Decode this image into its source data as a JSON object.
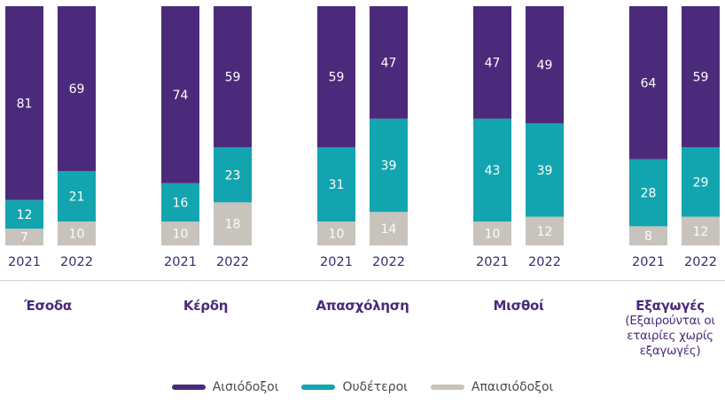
{
  "chart_data": {
    "type": "bar",
    "stacked": true,
    "percent": true,
    "title": "",
    "xlabel": "",
    "ylabel": "",
    "ylim": [
      0,
      100
    ],
    "grid": false,
    "legend_position": "bottom-center",
    "groups": [
      {
        "category": "Έσοδα",
        "note": "",
        "years": [
          "2021",
          "2022"
        ]
      },
      {
        "category": "Κέρδη",
        "note": "",
        "years": [
          "2021",
          "2022"
        ]
      },
      {
        "category": "Απασχόληση",
        "note": "",
        "years": [
          "2021",
          "2022"
        ]
      },
      {
        "category": "Μισθοί",
        "note": "",
        "years": [
          "2021",
          "2022"
        ]
      },
      {
        "category": "Εξαγωγές",
        "note": "(Εξαιρούνται οι εταιρίες χωρίς εξαγωγές)",
        "years": [
          "2021",
          "2022"
        ]
      }
    ],
    "series": [
      {
        "name": "Αισιόδοξοι",
        "color": "#4b2a7b",
        "values": [
          [
            81,
            69
          ],
          [
            74,
            59
          ],
          [
            59,
            47
          ],
          [
            47,
            49
          ],
          [
            64,
            59
          ]
        ]
      },
      {
        "name": "Ουδέτεροι",
        "color": "#12a5b0",
        "values": [
          [
            12,
            21
          ],
          [
            16,
            23
          ],
          [
            31,
            39
          ],
          [
            43,
            39
          ],
          [
            28,
            29
          ]
        ]
      },
      {
        "name": "Απαισιόδοξοι",
        "color": "#c8c3bd",
        "values": [
          [
            7,
            10
          ],
          [
            10,
            18
          ],
          [
            10,
            14
          ],
          [
            10,
            12
          ],
          [
            8,
            12
          ]
        ]
      }
    ]
  },
  "categories": {
    "c0": "Έσοδα",
    "c1": "Κέρδη",
    "c2": "Απασχόληση",
    "c3": "Μισθοί",
    "c4": "Εξαγωγές",
    "c4_note": "(Εξαιρούνται οι εταιρίες χωρίς εξαγωγές)"
  },
  "legend": {
    "optimistic": "Αισιόδοξοι",
    "neutral": "Ουδέτεροι",
    "pessimistic": "Απαισιόδοξοι",
    "colors": {
      "optimistic": "#4b2a7b",
      "neutral": "#12a5b0",
      "pessimistic": "#c8c3bd"
    }
  }
}
